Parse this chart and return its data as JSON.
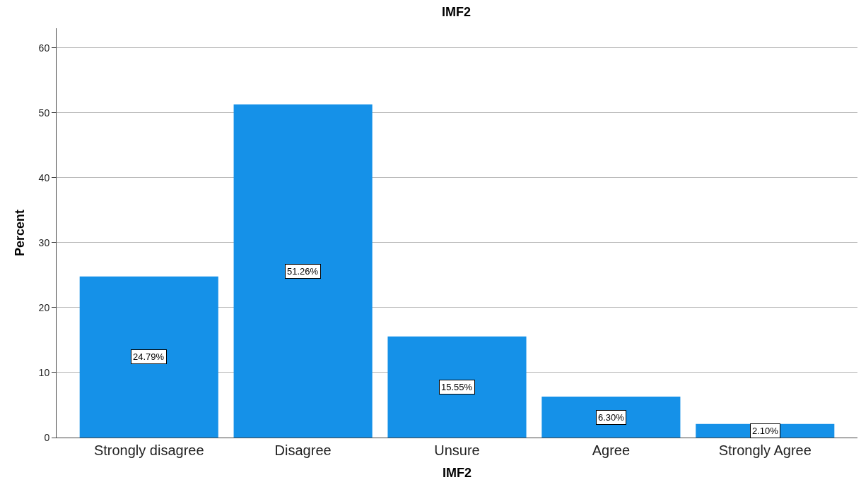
{
  "chart_data": {
    "type": "bar",
    "title": "IMF2",
    "xlabel": "IMF2",
    "ylabel": "Percent",
    "categories": [
      "Strongly disagree",
      "Disagree",
      "Unsure",
      "Agree",
      "Strongly Agree"
    ],
    "values": [
      24.79,
      51.26,
      15.55,
      6.3,
      2.1
    ],
    "value_labels": [
      "24.79%",
      "51.26%",
      "15.55%",
      "6.30%",
      "2.10%"
    ],
    "color": "#1591e8",
    "ylim": [
      0,
      63
    ],
    "yticks": [
      0,
      10,
      20,
      30,
      40,
      50,
      60
    ],
    "grid": "y",
    "legend": false
  }
}
